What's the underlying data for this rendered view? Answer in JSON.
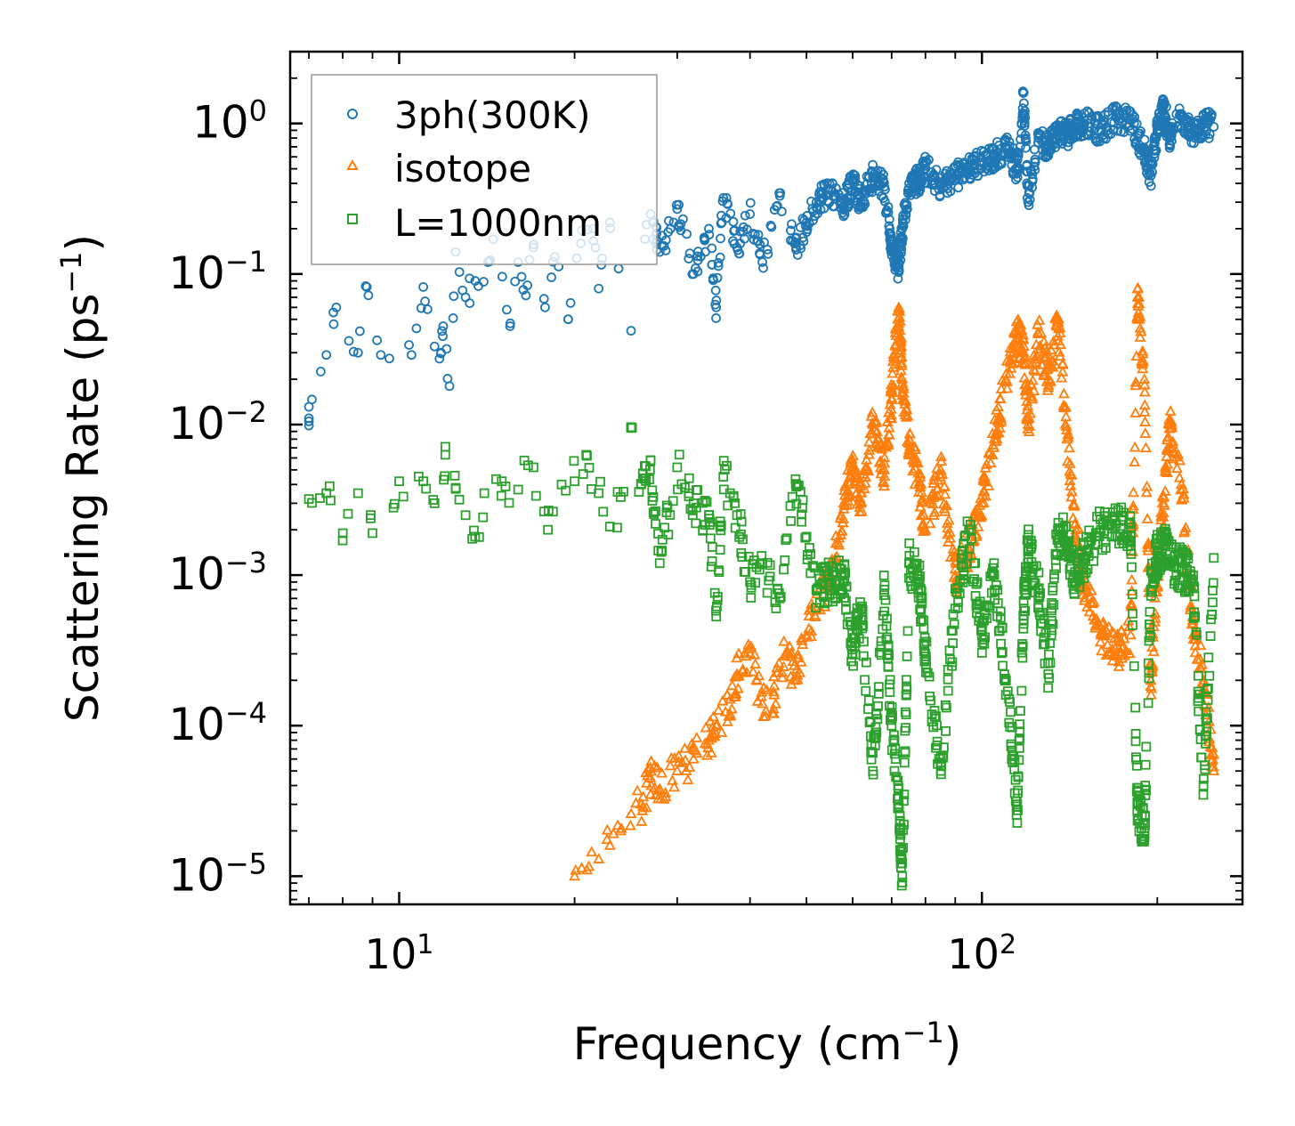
{
  "chart_data": {
    "type": "scatter",
    "title": "",
    "xlabel": "Frequency (cm",
    "xlabel_sup": "−1",
    "xlabel_end": ")",
    "ylabel": "Scattering Rate (ps",
    "ylabel_sup": "−1",
    "ylabel_end": ")",
    "xscale": "log",
    "yscale": "log",
    "xlim": [
      6.5,
      280
    ],
    "ylim": [
      6.5e-06,
      3.0
    ],
    "x_ticks": [
      {
        "base": "10",
        "exp": "1",
        "value": 10
      },
      {
        "base": "10",
        "exp": "2",
        "value": 100
      }
    ],
    "y_ticks": [
      {
        "base": "10",
        "exp": "0",
        "value": 1
      },
      {
        "base": "10",
        "exp": "−1",
        "value": 0.1
      },
      {
        "base": "10",
        "exp": "−2",
        "value": 0.01
      },
      {
        "base": "10",
        "exp": "−3",
        "value": 0.001
      },
      {
        "base": "10",
        "exp": "−4",
        "value": 0.0001
      },
      {
        "base": "10",
        "exp": "−5",
        "value": 1e-05
      }
    ],
    "legend_position": "top-left",
    "series": [
      {
        "name": "3ph(300K)",
        "marker": "circle",
        "color": "#1f77b4",
        "x": [
          7.0,
          7.0,
          7.5,
          7.8,
          8.5,
          8.8,
          9.3,
          10.5,
          11.0,
          11.5,
          11.8,
          11.9,
          12.2,
          12.5,
          13.0,
          13.5,
          14.2,
          14.5,
          15.5,
          16.0,
          16.5,
          17.0,
          17.8,
          18.5,
          19.5,
          20.5,
          21.5,
          22.0,
          23.0,
          25.0,
          27.0,
          28.0,
          30.0,
          32.0,
          34.0,
          35.0,
          36.0,
          38.0,
          40.0,
          42.0,
          45.0,
          48.0,
          50.0,
          52.0,
          55.0,
          58.0,
          60.0,
          62.0,
          65.0,
          68.0,
          70.0,
          72.0,
          73.0,
          75.0,
          78.0,
          80.0,
          85.0,
          90.0,
          95.0,
          100.0,
          105.0,
          110.0,
          115.0,
          118.0,
          120.0,
          125.0,
          130.0,
          135.0,
          140.0,
          145.0,
          150.0,
          160.0,
          170.0,
          180.0,
          190.0,
          195.0,
          200.0,
          205.0,
          210.0,
          220.0,
          230.0,
          240.0,
          250.0
        ],
        "y": [
          0.011,
          0.0105,
          0.029,
          0.06,
          0.03,
          0.082,
          0.029,
          0.029,
          0.082,
          0.033,
          0.03,
          0.045,
          0.018,
          0.14,
          0.07,
          0.09,
          0.12,
          0.17,
          0.045,
          0.12,
          0.072,
          0.15,
          0.06,
          0.13,
          0.05,
          0.16,
          0.2,
          0.08,
          0.22,
          0.042,
          0.25,
          0.14,
          0.27,
          0.1,
          0.2,
          0.06,
          0.32,
          0.15,
          0.25,
          0.12,
          0.33,
          0.15,
          0.22,
          0.3,
          0.36,
          0.28,
          0.42,
          0.3,
          0.44,
          0.38,
          0.15,
          0.11,
          0.2,
          0.4,
          0.42,
          0.5,
          0.38,
          0.45,
          0.5,
          0.55,
          0.6,
          0.7,
          0.5,
          1.6,
          0.3,
          0.8,
          0.7,
          0.9,
          0.85,
          1.0,
          1.0,
          0.9,
          1.1,
          1.05,
          0.65,
          0.45,
          0.9,
          1.3,
          0.8,
          1.1,
          0.85,
          1.0,
          0.95
        ]
      },
      {
        "name": "isotope",
        "marker": "triangle",
        "color": "#ff7f0e",
        "x": [
          20.0,
          21.0,
          22.0,
          23.0,
          24.0,
          25.0,
          26.0,
          27.0,
          28.0,
          30.0,
          32.0,
          34.0,
          35.0,
          37.0,
          38.0,
          40.0,
          42.0,
          44.0,
          46.0,
          48.0,
          50.0,
          52.0,
          55.0,
          58.0,
          60.0,
          62.0,
          65.0,
          68.0,
          70.0,
          72.0,
          73.0,
          75.0,
          78.0,
          80.0,
          85.0,
          90.0,
          95.0,
          100.0,
          105.0,
          110.0,
          115.0,
          118.0,
          120.0,
          125.0,
          130.0,
          135.0,
          140.0,
          145.0,
          150.0,
          160.0,
          170.0,
          180.0,
          185.0,
          190.0,
          195.0,
          200.0,
          205.0,
          210.0,
          220.0,
          230.0,
          240.0,
          250.0
        ],
        "y": [
          1e-05,
          1.1e-05,
          1.3e-05,
          1.6e-05,
          2e-05,
          2.6e-05,
          3e-05,
          4.5e-05,
          3.8e-05,
          5e-05,
          6e-05,
          8e-05,
          0.0001,
          0.00015,
          0.00022,
          0.0003,
          0.00014,
          0.00016,
          0.0003,
          0.0002,
          0.0004,
          0.0006,
          0.001,
          0.003,
          0.005,
          0.003,
          0.01,
          0.005,
          0.015,
          0.06,
          0.02,
          0.008,
          0.004,
          0.002,
          0.005,
          0.001,
          0.0015,
          0.003,
          0.008,
          0.02,
          0.04,
          0.03,
          0.01,
          0.04,
          0.02,
          0.05,
          0.008,
          0.002,
          0.0008,
          0.0004,
          0.0003,
          0.0004,
          0.07,
          0.02,
          0.0002,
          0.001,
          0.003,
          0.01,
          0.004,
          0.0005,
          0.0002,
          5e-05
        ]
      },
      {
        "name": "L=1000nm",
        "marker": "square",
        "color": "#2ca02c",
        "x": [
          7.0,
          7.5,
          8.0,
          8.5,
          9.0,
          10.0,
          11.0,
          11.5,
          12.0,
          12.5,
          13.0,
          13.5,
          14.0,
          15.0,
          16.0,
          17.0,
          18.0,
          19.0,
          20.0,
          21.0,
          22.0,
          23.0,
          24.0,
          25.0,
          26.0,
          27.0,
          28.0,
          30.0,
          32.0,
          34.0,
          35.0,
          36.0,
          38.0,
          40.0,
          42.0,
          45.0,
          48.0,
          50.0,
          52.0,
          55.0,
          58.0,
          60.0,
          62.0,
          65.0,
          68.0,
          70.0,
          72.0,
          73.0,
          75.0,
          78.0,
          80.0,
          85.0,
          90.0,
          95.0,
          100.0,
          105.0,
          110.0,
          115.0,
          118.0,
          120.0,
          125.0,
          130.0,
          135.0,
          140.0,
          145.0,
          150.0,
          160.0,
          170.0,
          180.0,
          185.0,
          190.0,
          195.0,
          200.0,
          205.0,
          210.0,
          220.0,
          230.0,
          240.0,
          250.0
        ],
        "y": [
          0.0032,
          0.0035,
          0.0017,
          0.0035,
          0.0019,
          0.0042,
          0.0042,
          0.003,
          0.0063,
          0.0038,
          0.0025,
          0.0018,
          0.0035,
          0.0042,
          0.0037,
          0.0052,
          0.002,
          0.004,
          0.0042,
          0.0062,
          0.0035,
          0.0021,
          0.0033,
          0.0095,
          0.004,
          0.0058,
          0.0012,
          0.0052,
          0.003,
          0.0025,
          0.00053,
          0.0045,
          0.0025,
          0.0009,
          0.0012,
          0.0007,
          0.004,
          0.0018,
          0.0008,
          0.0009,
          0.001,
          0.0003,
          0.0006,
          5e-05,
          0.0008,
          0.0001,
          3e-05,
          1e-05,
          0.0012,
          0.0009,
          0.0003,
          5e-05,
          0.0006,
          0.002,
          0.0004,
          0.001,
          0.0002,
          3e-05,
          0.0006,
          0.0015,
          0.0008,
          0.00022,
          0.002,
          0.0016,
          0.0009,
          0.0013,
          0.002,
          0.0022,
          0.0018,
          3e-05,
          2e-05,
          0.0008,
          0.0014,
          0.0016,
          0.0012,
          0.0011,
          0.0009,
          4e-05,
          0.0013
        ]
      }
    ]
  }
}
